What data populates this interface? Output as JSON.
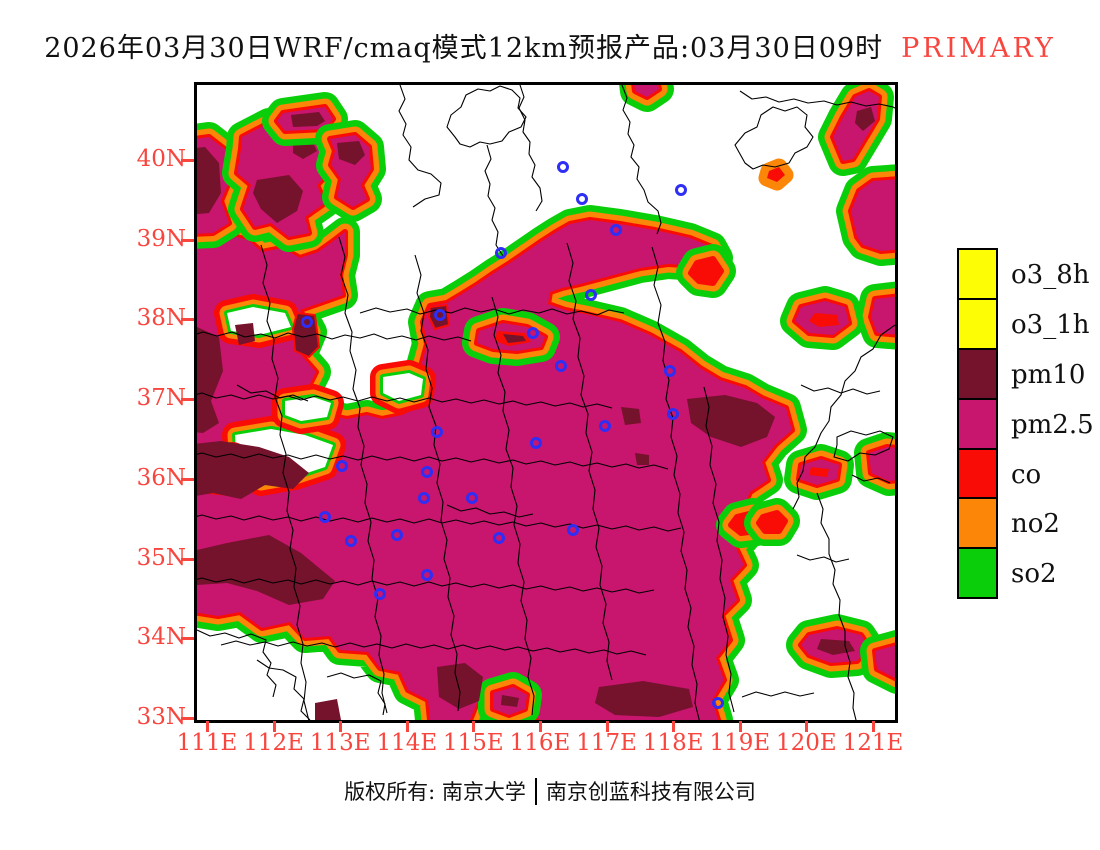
{
  "title": {
    "main": "2026年03月30日WRF/cmaq模式12km预报产品:03月30日09时",
    "highlight": "PRIMARY"
  },
  "axes": {
    "lat_labels": [
      "40N",
      "39N",
      "38N",
      "37N",
      "36N",
      "35N",
      "34N",
      "33N"
    ],
    "lon_labels": [
      "111E",
      "112E",
      "113E",
      "114E",
      "115E",
      "116E",
      "117E",
      "118E",
      "119E",
      "120E",
      "121E"
    ]
  },
  "legend": {
    "items": [
      {
        "label": "o3_8h",
        "color": "#FDFD05"
      },
      {
        "label": "o3_1h",
        "color": "#FDFD05"
      },
      {
        "label": "pm10",
        "color": "#75122C"
      },
      {
        "label": "pm2.5",
        "color": "#C8156E"
      },
      {
        "label": "co",
        "color": "#F90C05"
      },
      {
        "label": "no2",
        "color": "#FB8607"
      },
      {
        "label": "so2",
        "color": "#0BCE0B"
      }
    ]
  },
  "footer": {
    "owner": "版权所有: 南京大学",
    "company": "南京创蓝科技有限公司"
  },
  "colors": {
    "axis_label": "#F8463F",
    "boundary": "#000000",
    "city_marker": "#2E2EF5",
    "map_background": "#FFFFFF"
  }
}
